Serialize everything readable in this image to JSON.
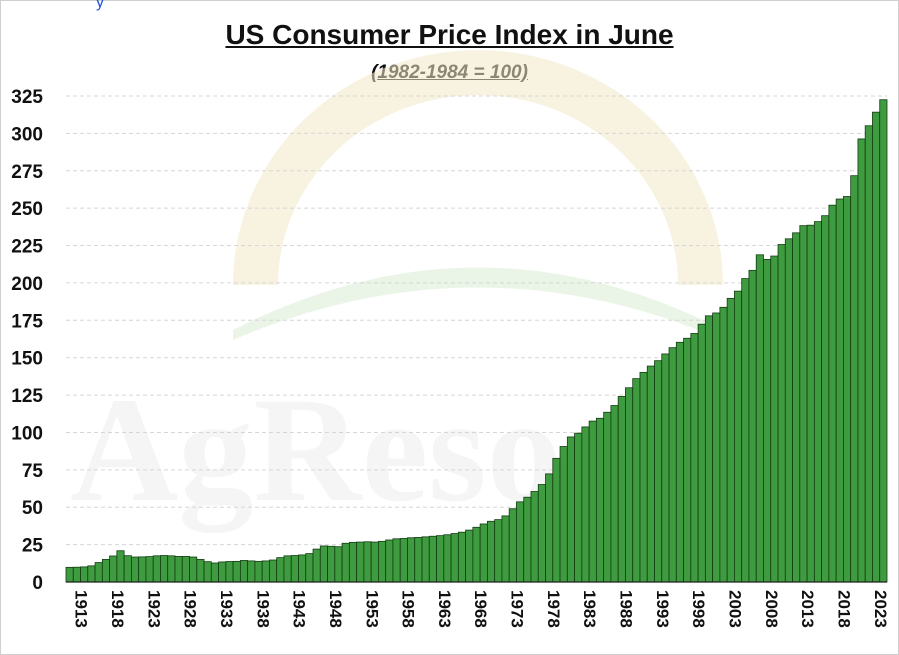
{
  "header": {
    "fragment": "y",
    "title": "US Consumer Price Index in June",
    "subtitle": "(1982-1984 = 100)"
  },
  "watermark": {
    "text": "AgReso"
  },
  "colors": {
    "bar_fill": "#3f9b3f",
    "bar_stroke": "#123d12",
    "gridline": "#d6d6d6",
    "sun_rays": "#f2e7c7",
    "field": "#d9ecd4"
  },
  "chart_data": {
    "type": "bar",
    "title": "US Consumer Price Index in June",
    "subtitle": "(1982-1984 = 100)",
    "xlabel": "",
    "ylabel": "",
    "ylim": [
      0,
      325
    ],
    "y_ticks": [
      0,
      25,
      50,
      75,
      100,
      125,
      150,
      175,
      200,
      225,
      250,
      275,
      300,
      325
    ],
    "grid": true,
    "x_tick_labels": [
      "1913",
      "1918",
      "1923",
      "1928",
      "1933",
      "1938",
      "1943",
      "1948",
      "1953",
      "1958",
      "1963",
      "1968",
      "1973",
      "1978",
      "1983",
      "1988",
      "1993",
      "1998",
      "2003",
      "2008",
      "2013",
      "2018",
      "2023"
    ],
    "categories": [
      "1913",
      "1914",
      "1915",
      "1916",
      "1917",
      "1918",
      "1919",
      "1920",
      "1921",
      "1922",
      "1923",
      "1924",
      "1925",
      "1926",
      "1927",
      "1928",
      "1929",
      "1930",
      "1931",
      "1932",
      "1933",
      "1934",
      "1935",
      "1936",
      "1937",
      "1938",
      "1939",
      "1940",
      "1941",
      "1942",
      "1943",
      "1944",
      "1945",
      "1946",
      "1947",
      "1948",
      "1949",
      "1950",
      "1951",
      "1952",
      "1953",
      "1954",
      "1955",
      "1956",
      "1957",
      "1958",
      "1959",
      "1960",
      "1961",
      "1962",
      "1963",
      "1964",
      "1965",
      "1966",
      "1967",
      "1968",
      "1969",
      "1970",
      "1971",
      "1972",
      "1973",
      "1974",
      "1975",
      "1976",
      "1977",
      "1978",
      "1979",
      "1980",
      "1981",
      "1982",
      "1983",
      "1984",
      "1985",
      "1986",
      "1987",
      "1988",
      "1989",
      "1990",
      "1991",
      "1992",
      "1993",
      "1994",
      "1995",
      "1996",
      "1997",
      "1998",
      "1999",
      "2000",
      "2001",
      "2002",
      "2003",
      "2004",
      "2005",
      "2006",
      "2007",
      "2008",
      "2009",
      "2010",
      "2011",
      "2012",
      "2013",
      "2014",
      "2015",
      "2016",
      "2017",
      "2018",
      "2019",
      "2020",
      "2021",
      "2022",
      "2023",
      "2024",
      "2025"
    ],
    "values": [
      9.8,
      9.9,
      10.1,
      10.8,
      13.0,
      15.1,
      17.4,
      20.9,
      17.6,
      16.7,
      16.8,
      17.0,
      17.5,
      17.7,
      17.5,
      17.1,
      17.1,
      16.7,
      15.1,
      13.6,
      12.7,
      13.4,
      13.7,
      13.8,
      14.4,
      14.1,
      13.8,
      14.1,
      14.7,
      16.3,
      17.5,
      17.7,
      18.1,
      19.0,
      22.0,
      24.1,
      23.9,
      23.6,
      25.9,
      26.5,
      26.7,
      26.9,
      26.7,
      27.2,
      28.1,
      28.9,
      29.1,
      29.6,
      29.8,
      30.2,
      30.6,
      31.0,
      31.6,
      32.4,
      33.3,
      34.7,
      36.6,
      38.8,
      40.6,
      41.7,
      44.2,
      49.0,
      53.6,
      56.7,
      60.5,
      65.2,
      72.3,
      82.7,
      90.6,
      97.0,
      99.5,
      103.7,
      107.6,
      109.5,
      113.5,
      118.0,
      124.1,
      129.9,
      136.0,
      140.2,
      144.4,
      148.0,
      152.5,
      156.7,
      160.3,
      163.0,
      166.2,
      172.4,
      178.0,
      179.9,
      183.7,
      189.7,
      194.5,
      202.9,
      208.4,
      218.8,
      215.7,
      217.97,
      225.7,
      229.5,
      233.5,
      238.3,
      238.6,
      241.0,
      244.96,
      251.99,
      256.1,
      257.8,
      271.7,
      296.3,
      305.1,
      314.2,
      322.5
    ]
  }
}
